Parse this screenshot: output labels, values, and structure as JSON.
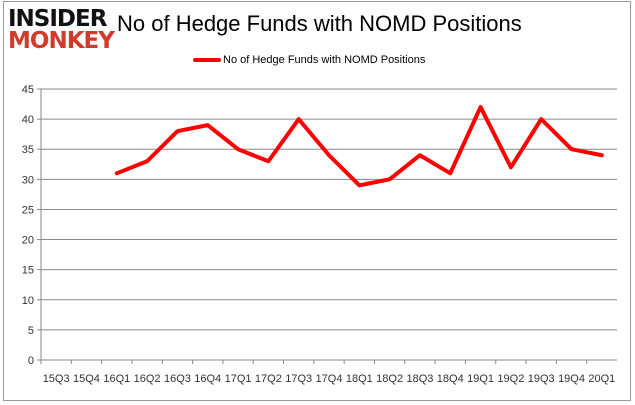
{
  "logo": {
    "line1": "INSIDER",
    "line2": "MONKEY"
  },
  "chart_data": {
    "type": "line",
    "title": "No of Hedge Funds with NOMD Positions",
    "categories": [
      "15Q3",
      "15Q4",
      "16Q1",
      "16Q2",
      "16Q3",
      "16Q4",
      "17Q1",
      "17Q2",
      "17Q3",
      "17Q4",
      "18Q1",
      "18Q2",
      "18Q3",
      "18Q4",
      "19Q1",
      "19Q2",
      "19Q3",
      "19Q4",
      "20Q1"
    ],
    "series": [
      {
        "name": "No of Hedge Funds with NOMD Positions",
        "color": "#ff0000",
        "values": [
          null,
          null,
          31,
          33,
          38,
          39,
          35,
          33,
          40,
          34,
          29,
          30,
          34,
          31,
          42,
          32,
          40,
          35,
          34
        ]
      }
    ],
    "ylim": [
      0,
      45
    ],
    "yticks": [
      0,
      5,
      10,
      15,
      20,
      25,
      30,
      35,
      40,
      45
    ],
    "grid": true,
    "legend": "top-center"
  }
}
